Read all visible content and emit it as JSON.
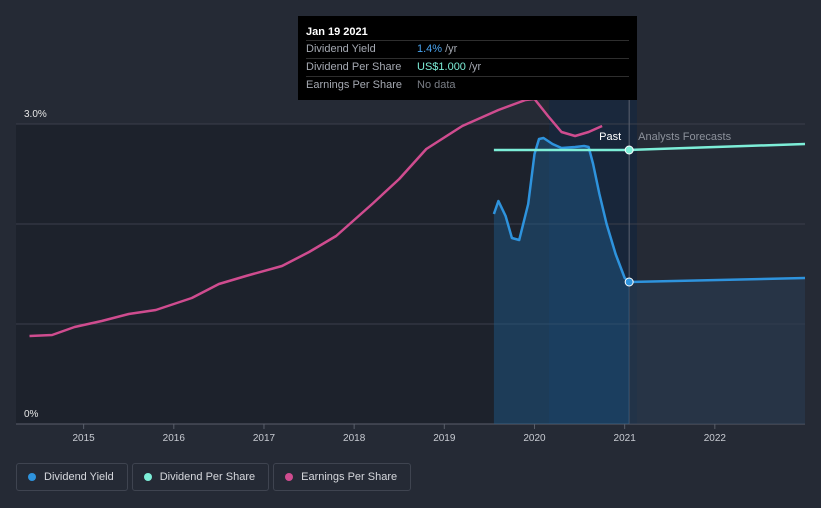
{
  "chart_data": {
    "type": "line",
    "y_axis": {
      "ticks": [
        "3.0%",
        "0%"
      ],
      "gridlines": 4
    },
    "x_axis": {
      "ticks": [
        "2015",
        "2016",
        "2017",
        "2018",
        "2019",
        "2020",
        "2021",
        "2022"
      ],
      "range": [
        2014.25,
        2023.0
      ]
    },
    "past_label": "Past",
    "forecast_label": "Analysts Forecasts",
    "cursor_year": 2021.05,
    "series": [
      {
        "name": "Dividend Yield",
        "color": "#2e93dd",
        "fill": true,
        "points": [
          [
            2019.55,
            2.1
          ],
          [
            2019.6,
            2.23
          ],
          [
            2019.68,
            2.08
          ],
          [
            2019.75,
            1.86
          ],
          [
            2019.83,
            1.84
          ],
          [
            2019.93,
            2.2
          ],
          [
            2020.0,
            2.7
          ],
          [
            2020.05,
            2.85
          ],
          [
            2020.1,
            2.86
          ],
          [
            2020.2,
            2.8
          ],
          [
            2020.3,
            2.76
          ],
          [
            2020.45,
            2.77
          ],
          [
            2020.55,
            2.78
          ],
          [
            2020.6,
            2.77
          ],
          [
            2020.65,
            2.6
          ],
          [
            2020.72,
            2.3
          ],
          [
            2020.8,
            2.0
          ],
          [
            2020.9,
            1.7
          ],
          [
            2021.0,
            1.46
          ],
          [
            2021.05,
            1.42
          ]
        ],
        "forecast": [
          [
            2021.05,
            1.42
          ],
          [
            2023.0,
            1.46
          ]
        ]
      },
      {
        "name": "Dividend Per Share",
        "color": "#7deed8",
        "fill": false,
        "points": [
          [
            2019.55,
            2.74
          ],
          [
            2021.05,
            2.74
          ]
        ],
        "forecast": [
          [
            2021.05,
            2.74
          ],
          [
            2023.0,
            2.8
          ]
        ]
      },
      {
        "name": "Earnings Per Share",
        "color": "#cf4c8f",
        "fill": false,
        "points": [
          [
            2014.4,
            0.88
          ],
          [
            2014.65,
            0.89
          ],
          [
            2014.9,
            0.97
          ],
          [
            2015.2,
            1.03
          ],
          [
            2015.5,
            1.1
          ],
          [
            2015.8,
            1.14
          ],
          [
            2016.2,
            1.26
          ],
          [
            2016.5,
            1.4
          ],
          [
            2016.8,
            1.48
          ],
          [
            2017.2,
            1.58
          ],
          [
            2017.5,
            1.72
          ],
          [
            2017.8,
            1.88
          ],
          [
            2018.2,
            2.2
          ],
          [
            2018.5,
            2.45
          ],
          [
            2018.8,
            2.75
          ],
          [
            2019.2,
            2.98
          ],
          [
            2019.6,
            3.14
          ],
          [
            2019.9,
            3.24
          ],
          [
            2020.0,
            3.25
          ],
          [
            2020.15,
            3.08
          ],
          [
            2020.3,
            2.92
          ],
          [
            2020.45,
            2.88
          ],
          [
            2020.6,
            2.92
          ],
          [
            2020.75,
            2.98
          ]
        ]
      }
    ],
    "tooltip": {
      "date": "Jan 19 2021",
      "rows": [
        {
          "label": "Dividend Yield",
          "value": "1.4%",
          "unit": "/yr",
          "color": "#49a4f0"
        },
        {
          "label": "Dividend Per Share",
          "value": "US$1.000",
          "unit": "/yr",
          "color": "#7deed8"
        },
        {
          "label": "Earnings Per Share",
          "value": "No data",
          "unit": "",
          "color": "#7a7e86"
        }
      ]
    },
    "legend": [
      {
        "label": "Dividend Yield",
        "color": "#2e93dd"
      },
      {
        "label": "Dividend Per Share",
        "color": "#7deed8"
      },
      {
        "label": "Earnings Per Share",
        "color": "#cf4c8f"
      }
    ]
  }
}
